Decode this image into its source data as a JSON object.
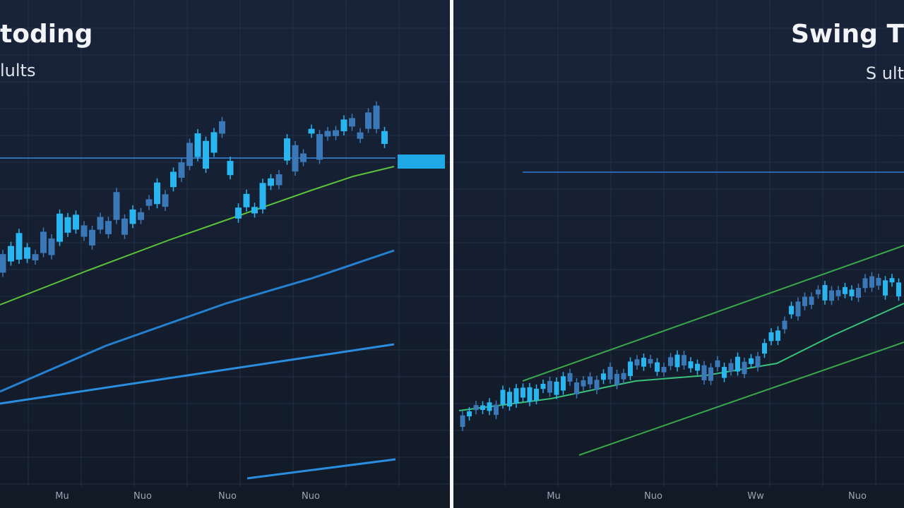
{
  "left_panel": {
    "title": "toding",
    "subtitle": "lults",
    "x_labels": [
      "Mu",
      "Nuo",
      "Nuo",
      "Nuo"
    ]
  },
  "right_panel": {
    "title": "Swing T",
    "subtitle": "S ult",
    "x_labels": [
      "Mu",
      "Nuo",
      "Ww",
      "Nuo"
    ]
  }
}
